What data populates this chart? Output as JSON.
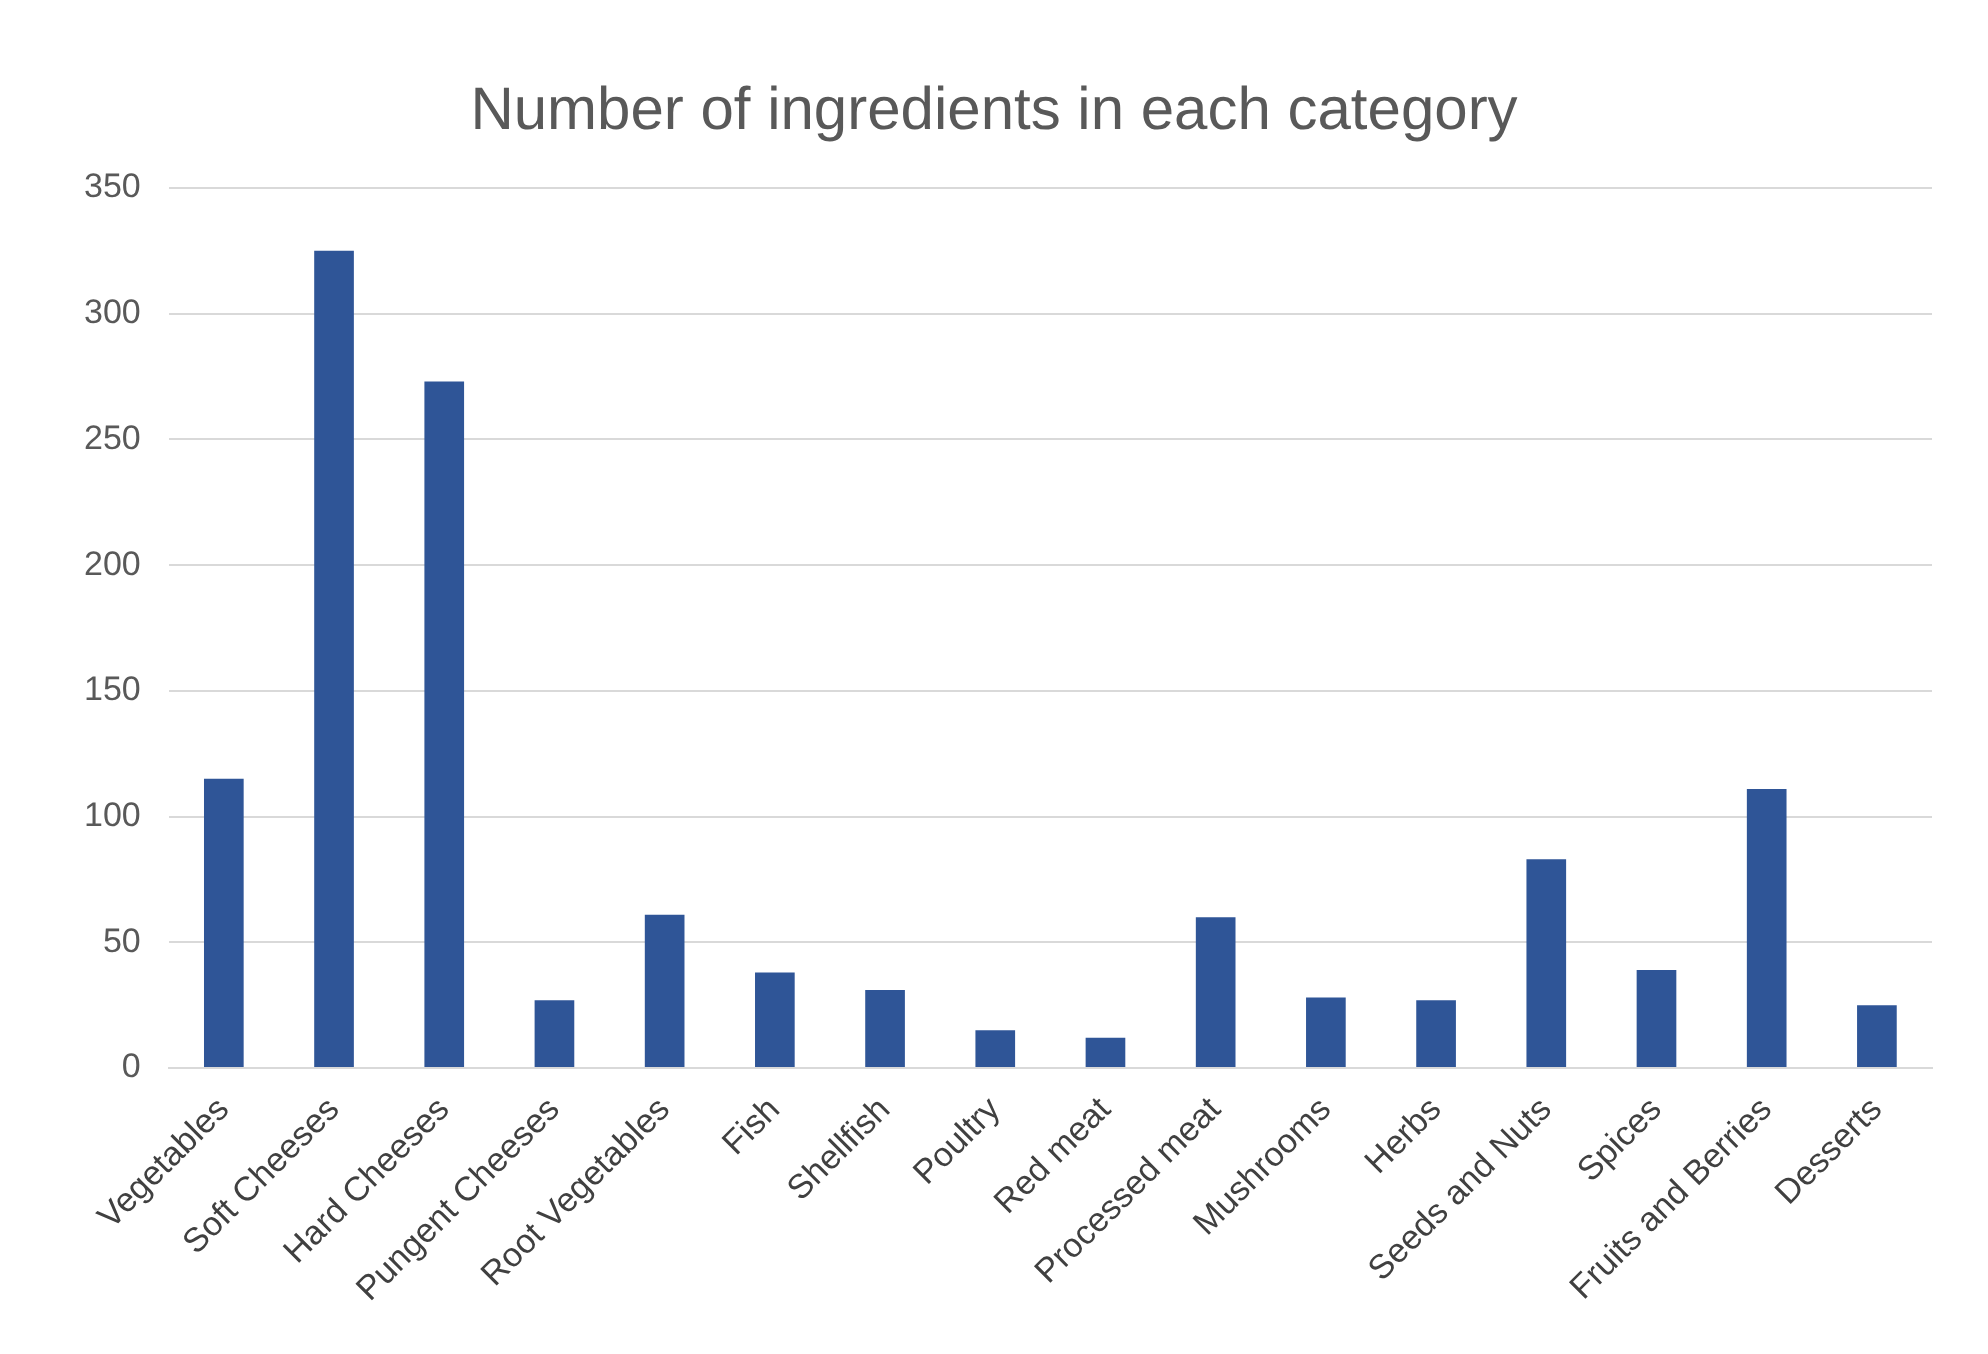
{
  "chart_data": {
    "type": "bar",
    "title": "Number of ingredients in each category",
    "categories": [
      "Vegetables",
      "Soft Cheeses",
      "Hard Cheeses",
      "Pungent Cheeses",
      "Root Vegetables",
      "Fish",
      "Shellfish",
      "Poultry",
      "Red meat",
      "Processed meat",
      "Mushrooms",
      "Herbs",
      "Seeds and Nuts",
      "Spices",
      "Fruits and Berries",
      "Desserts"
    ],
    "values": [
      115,
      325,
      273,
      27,
      61,
      38,
      31,
      15,
      12,
      60,
      28,
      27,
      83,
      39,
      111,
      25
    ],
    "color": "#2f5597",
    "ylim": [
      0,
      350
    ],
    "yticks": [
      0,
      50,
      100,
      150,
      200,
      250,
      300,
      350
    ],
    "grid": "y",
    "legend": false
  }
}
